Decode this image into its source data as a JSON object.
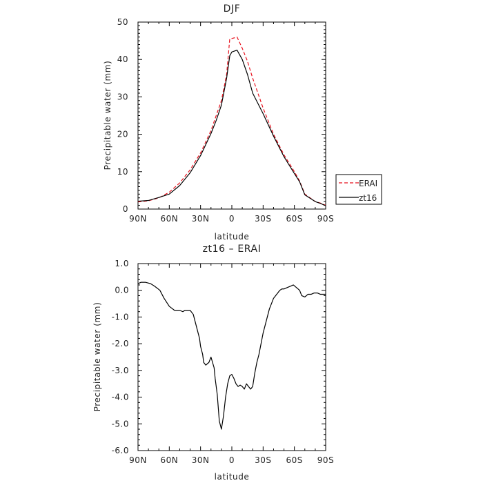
{
  "chart_data": [
    {
      "type": "line",
      "title": "DJF",
      "xlabel": "latitude",
      "ylabel": "Precipitable water (mm)",
      "xticklabels": [
        "90N",
        "60N",
        "30N",
        "0",
        "30S",
        "60S",
        "90S"
      ],
      "xticks": [
        90,
        60,
        30,
        0,
        -30,
        -60,
        -90
      ],
      "xlim": [
        90,
        -90
      ],
      "ylim": [
        0,
        50
      ],
      "yticks": [
        0,
        10,
        20,
        30,
        40,
        50
      ],
      "yticklabels": [
        "0",
        "10",
        "20",
        "30",
        "40",
        "50"
      ],
      "legend_position": "right",
      "x": [
        90,
        80,
        70,
        60,
        50,
        40,
        30,
        20,
        15,
        10,
        5,
        2,
        0,
        -5,
        -10,
        -15,
        -20,
        -30,
        -40,
        -50,
        -60,
        -65,
        -70,
        -80,
        -85,
        -90
      ],
      "series": [
        {
          "name": "ERAI",
          "color": "#e8121e",
          "dash": "dashed",
          "values": [
            1.9,
            2.2,
            3.0,
            4.5,
            7.0,
            10.5,
            15.0,
            21.0,
            25.0,
            29.0,
            36.0,
            45.5,
            45.6,
            46.0,
            43.0,
            39.5,
            35.0,
            27.0,
            20.0,
            14.5,
            10.0,
            7.5,
            4.0,
            2.0,
            1.6,
            1.0
          ]
        },
        {
          "name": "zt16",
          "color": "#000000",
          "dash": "solid",
          "values": [
            2.1,
            2.3,
            3.1,
            4.0,
            6.3,
            9.7,
            14.3,
            20.2,
            23.7,
            27.8,
            35.0,
            41.0,
            42.0,
            42.5,
            40.0,
            36.0,
            31.0,
            25.5,
            19.5,
            14.0,
            9.5,
            7.3,
            3.8,
            2.0,
            1.5,
            0.9
          ]
        }
      ]
    },
    {
      "type": "line",
      "title": "zt16 – ERAI",
      "xlabel": "latitude",
      "ylabel": "Precipitable water (mm)",
      "xticklabels": [
        "90N",
        "60N",
        "30N",
        "0",
        "30S",
        "60S",
        "90S"
      ],
      "xticks": [
        90,
        60,
        30,
        0,
        -30,
        -60,
        -90
      ],
      "xlim": [
        90,
        -90
      ],
      "ylim": [
        -6.0,
        1.0
      ],
      "yticks": [
        1.0,
        0.0,
        -1.0,
        -2.0,
        -3.0,
        -4.0,
        -5.0,
        -6.0
      ],
      "yticklabels": [
        "1.0",
        "0.0",
        "-1.0",
        "-2.0",
        "-3.0",
        "-4.0",
        "-5.0",
        "-6.0"
      ],
      "x": [
        90,
        87,
        83,
        78,
        74,
        69,
        65,
        60,
        55,
        50,
        47,
        45,
        43,
        40,
        37,
        35,
        33,
        31,
        30,
        28,
        27,
        25,
        22,
        20,
        17,
        16,
        14,
        12,
        10,
        8,
        6,
        4,
        2,
        0,
        -2,
        -4,
        -6,
        -8,
        -10,
        -12,
        -14,
        -16,
        -18,
        -20,
        -22,
        -24,
        -26,
        -28,
        -30,
        -32,
        -34,
        -36,
        -38,
        -40,
        -42,
        -44,
        -46,
        -48,
        -50,
        -53,
        -56,
        -59,
        -62,
        -65,
        -67,
        -70,
        -73,
        -76,
        -79,
        -82,
        -85,
        -88,
        -90
      ],
      "series": [
        {
          "name": "zt16 – ERAI",
          "color": "#000000",
          "values": [
            0.25,
            0.3,
            0.3,
            0.25,
            0.15,
            0.0,
            -0.3,
            -0.6,
            -0.75,
            -0.75,
            -0.8,
            -0.75,
            -0.75,
            -0.75,
            -0.9,
            -1.2,
            -1.5,
            -1.8,
            -2.1,
            -2.4,
            -2.7,
            -2.8,
            -2.7,
            -2.5,
            -2.9,
            -3.3,
            -3.9,
            -4.9,
            -5.2,
            -4.7,
            -4.0,
            -3.5,
            -3.2,
            -3.15,
            -3.3,
            -3.5,
            -3.6,
            -3.55,
            -3.6,
            -3.7,
            -3.5,
            -3.6,
            -3.7,
            -3.6,
            -3.1,
            -2.7,
            -2.4,
            -2.0,
            -1.6,
            -1.3,
            -1.0,
            -0.7,
            -0.5,
            -0.3,
            -0.2,
            -0.1,
            0.0,
            0.05,
            0.05,
            0.1,
            0.15,
            0.2,
            0.1,
            0.0,
            -0.2,
            -0.25,
            -0.15,
            -0.15,
            -0.1,
            -0.1,
            -0.15,
            -0.15,
            -0.15
          ]
        }
      ]
    }
  ]
}
